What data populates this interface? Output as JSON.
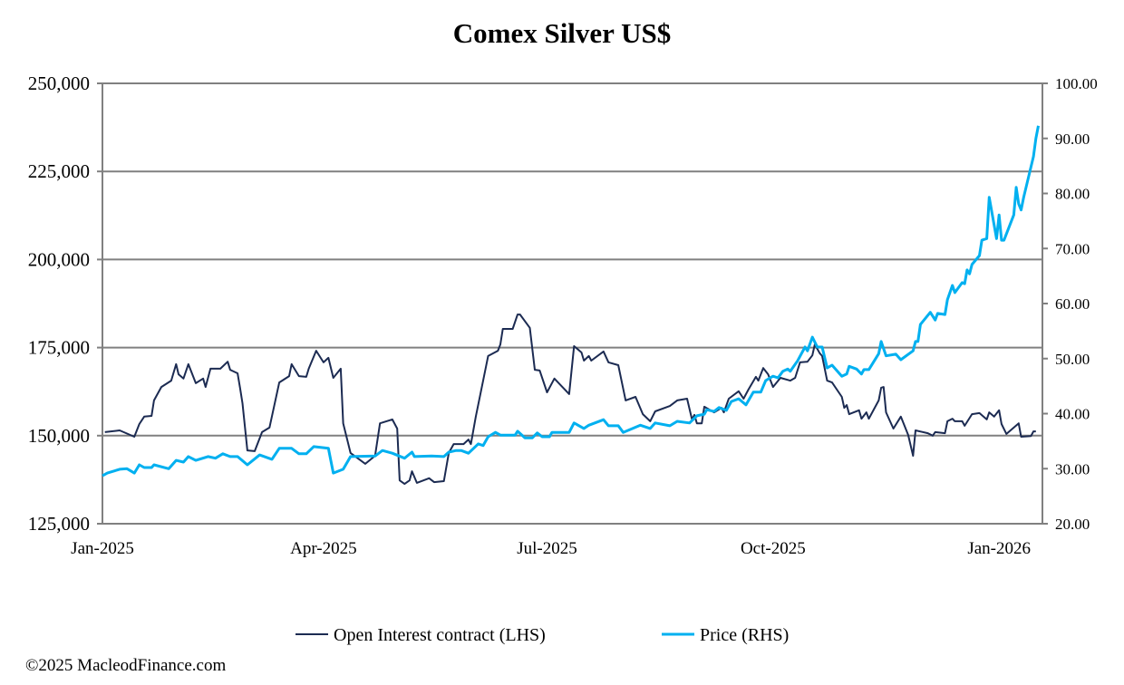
{
  "chart_data": {
    "type": "line",
    "title": "Comex Silver US$",
    "xlabel": "",
    "ylabel_left": "",
    "ylabel_right": "",
    "x_unit": "days since 1 Jan 2025",
    "x_ticks": [
      {
        "day": 0,
        "label": "Jan-2025"
      },
      {
        "day": 90,
        "label": "Apr-2025"
      },
      {
        "day": 181,
        "label": "Jul-2025"
      },
      {
        "day": 273,
        "label": "Oct-2025"
      },
      {
        "day": 365,
        "label": "Jan-2026"
      }
    ],
    "xlim": [
      0,
      383
    ],
    "ylim_left": [
      125000,
      250000
    ],
    "ylim_right": [
      20,
      100
    ],
    "left_ticks": [
      "125,000",
      "150,000",
      "175,000",
      "200,000",
      "225,000",
      "250,000"
    ],
    "left_tick_values": [
      125000,
      150000,
      175000,
      200000,
      225000,
      250000
    ],
    "right_ticks": [
      "20.00",
      "30.00",
      "40.00",
      "50.00",
      "60.00",
      "70.00",
      "80.00",
      "90.00",
      "100.00"
    ],
    "right_tick_values": [
      20,
      30,
      40,
      50,
      60,
      70,
      80,
      90,
      100
    ],
    "grid": "horizontal, left axis",
    "legend_position": "bottom-center",
    "series": [
      {
        "name": "Open Interest contract (LHS)",
        "axis": "left",
        "color": "#1c2b52",
        "points": [
          [
            1,
            151000
          ],
          [
            7,
            151500
          ],
          [
            13,
            149700
          ],
          [
            15,
            153300
          ],
          [
            17,
            155400
          ],
          [
            20,
            155600
          ],
          [
            21,
            160000
          ],
          [
            24,
            163800
          ],
          [
            28,
            165600
          ],
          [
            30,
            170300
          ],
          [
            31,
            167400
          ],
          [
            33,
            166200
          ],
          [
            35,
            170300
          ],
          [
            38,
            164900
          ],
          [
            41,
            166200
          ],
          [
            42,
            163800
          ],
          [
            44,
            169000
          ],
          [
            48,
            169000
          ],
          [
            51,
            171000
          ],
          [
            52,
            168700
          ],
          [
            55,
            167700
          ],
          [
            56,
            163600
          ],
          [
            57,
            159200
          ],
          [
            59,
            145800
          ],
          [
            62,
            145600
          ],
          [
            65,
            151000
          ],
          [
            68,
            152300
          ],
          [
            72,
            165100
          ],
          [
            76,
            166900
          ],
          [
            77,
            170300
          ],
          [
            80,
            166900
          ],
          [
            83,
            166700
          ],
          [
            84,
            169000
          ],
          [
            87,
            174100
          ],
          [
            90,
            170800
          ],
          [
            92,
            172100
          ],
          [
            94,
            166400
          ],
          [
            97,
            169000
          ],
          [
            98,
            153500
          ],
          [
            101,
            145100
          ],
          [
            107,
            142000
          ],
          [
            111,
            144300
          ],
          [
            113,
            153500
          ],
          [
            118,
            154600
          ],
          [
            120,
            152000
          ],
          [
            121,
            137300
          ],
          [
            123,
            136300
          ],
          [
            125,
            137300
          ],
          [
            126,
            139900
          ],
          [
            128,
            136600
          ],
          [
            133,
            137900
          ],
          [
            135,
            136800
          ],
          [
            139,
            137100
          ],
          [
            141,
            145100
          ],
          [
            143,
            147600
          ],
          [
            147,
            147600
          ],
          [
            149,
            148900
          ],
          [
            150,
            147600
          ],
          [
            152,
            155400
          ],
          [
            155,
            165600
          ],
          [
            157,
            172600
          ],
          [
            161,
            174100
          ],
          [
            162,
            175900
          ],
          [
            163,
            180300
          ],
          [
            167,
            180300
          ],
          [
            169,
            184400
          ],
          [
            170,
            184400
          ],
          [
            174,
            180600
          ],
          [
            176,
            168700
          ],
          [
            178,
            168500
          ],
          [
            181,
            162300
          ],
          [
            184,
            166200
          ],
          [
            190,
            161800
          ],
          [
            192,
            175400
          ],
          [
            195,
            173600
          ],
          [
            196,
            171300
          ],
          [
            198,
            172600
          ],
          [
            199,
            171300
          ],
          [
            204,
            173900
          ],
          [
            206,
            170800
          ],
          [
            210,
            170000
          ],
          [
            213,
            160000
          ],
          [
            217,
            161000
          ],
          [
            220,
            156100
          ],
          [
            223,
            154100
          ],
          [
            225,
            156900
          ],
          [
            231,
            158400
          ],
          [
            234,
            160000
          ],
          [
            238,
            160500
          ],
          [
            240,
            154600
          ],
          [
            241,
            155900
          ],
          [
            242,
            153500
          ],
          [
            244,
            153500
          ],
          [
            245,
            158200
          ],
          [
            249,
            156600
          ],
          [
            252,
            157900
          ],
          [
            253,
            156600
          ],
          [
            255,
            160500
          ],
          [
            259,
            162600
          ],
          [
            261,
            160500
          ],
          [
            263,
            163100
          ],
          [
            266,
            166700
          ],
          [
            267,
            165600
          ],
          [
            269,
            169200
          ],
          [
            271,
            167400
          ],
          [
            273,
            163800
          ],
          [
            276,
            166400
          ],
          [
            280,
            165600
          ],
          [
            282,
            166400
          ],
          [
            284,
            170800
          ],
          [
            287,
            171000
          ],
          [
            289,
            172800
          ],
          [
            290,
            175900
          ],
          [
            292,
            173400
          ],
          [
            293,
            172600
          ],
          [
            295,
            165600
          ],
          [
            297,
            165100
          ],
          [
            301,
            161000
          ],
          [
            302,
            157900
          ],
          [
            303,
            158700
          ],
          [
            304,
            156100
          ],
          [
            308,
            157200
          ],
          [
            309,
            154800
          ],
          [
            311,
            156600
          ],
          [
            312,
            154800
          ],
          [
            316,
            160000
          ],
          [
            317,
            163600
          ],
          [
            318,
            163800
          ],
          [
            319,
            156600
          ],
          [
            322,
            152000
          ],
          [
            325,
            155400
          ],
          [
            328,
            150200
          ],
          [
            330,
            144300
          ],
          [
            331,
            151500
          ],
          [
            336,
            150700
          ],
          [
            338,
            150000
          ],
          [
            339,
            151000
          ],
          [
            343,
            150700
          ],
          [
            344,
            154100
          ],
          [
            346,
            154800
          ],
          [
            347,
            154100
          ],
          [
            350,
            154100
          ],
          [
            351,
            152800
          ],
          [
            354,
            156100
          ],
          [
            357,
            156400
          ],
          [
            360,
            154600
          ],
          [
            361,
            156600
          ],
          [
            363,
            155400
          ],
          [
            365,
            157200
          ],
          [
            366,
            153300
          ],
          [
            368,
            150500
          ],
          [
            373,
            153500
          ],
          [
            374,
            149700
          ],
          [
            378,
            149900
          ],
          [
            379,
            151200
          ],
          [
            380,
            151200
          ]
        ]
      },
      {
        "name": "Price (RHS)",
        "axis": "right",
        "color": "#00b0f0",
        "points": [
          [
            0,
            28.7
          ],
          [
            2,
            29.2
          ],
          [
            7,
            29.9
          ],
          [
            10,
            30.0
          ],
          [
            13,
            29.2
          ],
          [
            15,
            30.7
          ],
          [
            17,
            30.2
          ],
          [
            20,
            30.2
          ],
          [
            21,
            30.7
          ],
          [
            27,
            30.0
          ],
          [
            30,
            31.5
          ],
          [
            33,
            31.2
          ],
          [
            35,
            32.2
          ],
          [
            38,
            31.5
          ],
          [
            43,
            32.2
          ],
          [
            46,
            31.9
          ],
          [
            49,
            32.7
          ],
          [
            52,
            32.2
          ],
          [
            55,
            32.2
          ],
          [
            59,
            30.7
          ],
          [
            64,
            32.5
          ],
          [
            69,
            31.7
          ],
          [
            72,
            33.7
          ],
          [
            77,
            33.7
          ],
          [
            80,
            32.7
          ],
          [
            83,
            32.7
          ],
          [
            86,
            34.0
          ],
          [
            92,
            33.7
          ],
          [
            94,
            29.2
          ],
          [
            98,
            29.9
          ],
          [
            101,
            32.2
          ],
          [
            111,
            32.3
          ],
          [
            114,
            33.3
          ],
          [
            118,
            32.8
          ],
          [
            123,
            31.9
          ],
          [
            126,
            33.0
          ],
          [
            127,
            32.2
          ],
          [
            134,
            32.3
          ],
          [
            139,
            32.2
          ],
          [
            141,
            33.0
          ],
          [
            144,
            33.3
          ],
          [
            146,
            33.3
          ],
          [
            149,
            32.8
          ],
          [
            153,
            34.5
          ],
          [
            155,
            34.2
          ],
          [
            157,
            35.8
          ],
          [
            160,
            36.6
          ],
          [
            162,
            36.1
          ],
          [
            168,
            36.1
          ],
          [
            169,
            36.8
          ],
          [
            172,
            35.6
          ],
          [
            175,
            35.6
          ],
          [
            177,
            36.5
          ],
          [
            179,
            35.8
          ],
          [
            182,
            35.8
          ],
          [
            183,
            36.6
          ],
          [
            190,
            36.6
          ],
          [
            192,
            38.3
          ],
          [
            196,
            37.3
          ],
          [
            198,
            37.9
          ],
          [
            204,
            38.9
          ],
          [
            206,
            37.8
          ],
          [
            210,
            37.8
          ],
          [
            212,
            36.6
          ],
          [
            219,
            37.9
          ],
          [
            223,
            37.3
          ],
          [
            225,
            38.3
          ],
          [
            231,
            37.8
          ],
          [
            234,
            38.6
          ],
          [
            239,
            38.3
          ],
          [
            242,
            39.6
          ],
          [
            245,
            39.9
          ],
          [
            246,
            40.7
          ],
          [
            249,
            40.4
          ],
          [
            251,
            41.1
          ],
          [
            254,
            40.6
          ],
          [
            256,
            42.2
          ],
          [
            259,
            42.7
          ],
          [
            262,
            41.6
          ],
          [
            265,
            43.9
          ],
          [
            268,
            43.9
          ],
          [
            270,
            46.0
          ],
          [
            273,
            46.8
          ],
          [
            275,
            46.5
          ],
          [
            277,
            47.7
          ],
          [
            279,
            48.1
          ],
          [
            280,
            47.7
          ],
          [
            283,
            49.6
          ],
          [
            286,
            52.1
          ],
          [
            287,
            51.4
          ],
          [
            289,
            53.9
          ],
          [
            291,
            52.1
          ],
          [
            293,
            52.1
          ],
          [
            295,
            48.3
          ],
          [
            297,
            48.8
          ],
          [
            301,
            46.8
          ],
          [
            303,
            47.2
          ],
          [
            304,
            48.6
          ],
          [
            307,
            48.1
          ],
          [
            309,
            47.2
          ],
          [
            310,
            48.0
          ],
          [
            312,
            48.0
          ],
          [
            316,
            50.9
          ],
          [
            317,
            53.1
          ],
          [
            319,
            50.5
          ],
          [
            323,
            50.8
          ],
          [
            325,
            49.8
          ],
          [
            330,
            51.4
          ],
          [
            331,
            53.1
          ],
          [
            332,
            53.1
          ],
          [
            333,
            56.2
          ],
          [
            337,
            58.4
          ],
          [
            339,
            57.0
          ],
          [
            340,
            58.2
          ],
          [
            343,
            58.0
          ],
          [
            344,
            60.7
          ],
          [
            346,
            63.3
          ],
          [
            347,
            62.0
          ],
          [
            350,
            63.8
          ],
          [
            351,
            63.6
          ],
          [
            352,
            66.1
          ],
          [
            353,
            65.4
          ],
          [
            354,
            67.1
          ],
          [
            357,
            68.7
          ],
          [
            358,
            71.5
          ],
          [
            360,
            71.8
          ],
          [
            361,
            79.3
          ],
          [
            364,
            71.8
          ],
          [
            365,
            76.1
          ],
          [
            366,
            71.5
          ],
          [
            367,
            71.5
          ],
          [
            371,
            76.1
          ],
          [
            372,
            81.1
          ],
          [
            373,
            78.1
          ],
          [
            374,
            77.0
          ],
          [
            375,
            79.3
          ],
          [
            379,
            86.7
          ],
          [
            380,
            90.0
          ],
          [
            381,
            92.3
          ]
        ]
      }
    ]
  },
  "footer": "©2025 MacleodFinance.com",
  "colors": {
    "grid": "#808080",
    "oi": "#1c2b52",
    "price": "#00b0f0"
  }
}
